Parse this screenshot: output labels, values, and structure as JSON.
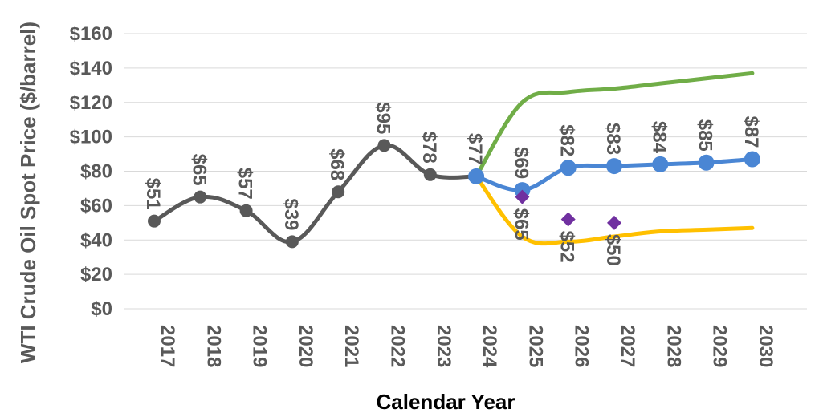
{
  "chart_data": {
    "type": "line",
    "title": "",
    "xlabel": "Calendar Year",
    "ylabel": "WTI Crude Oil Spot Price ($/barrel)",
    "categories": [
      "2017",
      "2018",
      "2019",
      "2020",
      "2021",
      "2022",
      "2023",
      "2024",
      "2025",
      "2026",
      "2027",
      "2028",
      "2029",
      "2030"
    ],
    "ylim": [
      0,
      160
    ],
    "yticks": [
      0,
      20,
      40,
      60,
      80,
      100,
      120,
      140,
      160
    ],
    "ytick_labels": [
      "$0",
      "$20",
      "$40",
      "$60",
      "$80",
      "$100",
      "$120",
      "$140",
      "$160"
    ],
    "grid": true,
    "legend": "none",
    "series": [
      {
        "key": "historical",
        "color": "#595959",
        "markers": true,
        "values": [
          51,
          65,
          57,
          39,
          68,
          95,
          78,
          77,
          null,
          null,
          null,
          null,
          null,
          null
        ],
        "labels": [
          "$51",
          "$65",
          "$57",
          "$39",
          "$68",
          "$95",
          "$78",
          "$77",
          "",
          "",
          "",
          "",
          "",
          ""
        ]
      },
      {
        "key": "reference",
        "color": "#4a86d4",
        "markers": true,
        "values": [
          null,
          null,
          null,
          null,
          null,
          null,
          null,
          77,
          69,
          82,
          83,
          84,
          85,
          87
        ],
        "labels": [
          "",
          "",
          "",
          "",
          "",
          "",
          "",
          "",
          "$69",
          "$82",
          "$83",
          "$84",
          "$85",
          "$87"
        ]
      },
      {
        "key": "high",
        "color": "#70ad47",
        "markers": false,
        "values": [
          null,
          null,
          null,
          null,
          null,
          null,
          null,
          77,
          120,
          126,
          128,
          131,
          134,
          137
        ]
      },
      {
        "key": "low",
        "color": "#ffc000",
        "markers": false,
        "values": [
          null,
          null,
          null,
          null,
          null,
          null,
          null,
          77,
          42,
          39,
          42,
          45,
          46,
          47
        ]
      },
      {
        "key": "other-forecast",
        "color": "#7030a0",
        "marker_shape": "diamond",
        "line": false,
        "values": [
          null,
          null,
          null,
          null,
          null,
          null,
          null,
          null,
          65,
          52,
          50,
          null,
          null,
          null
        ],
        "labels": [
          "",
          "",
          "",
          "",
          "",
          "",
          "",
          "",
          "$65",
          "$52",
          "$50",
          "",
          "",
          ""
        ]
      }
    ]
  }
}
